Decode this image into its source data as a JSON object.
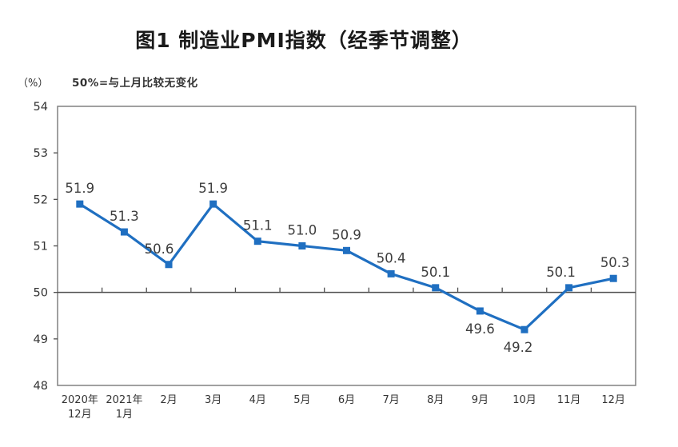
{
  "header": {
    "title": "图1 制造业PMI指数（经季节调整）"
  },
  "chart_data": {
    "type": "line",
    "title": "图1 制造业PMI指数（经季节调整）",
    "unit_label": "（%）",
    "annotation": "50%=与上月比较无变化",
    "categories": [
      [
        "2020年",
        "12月"
      ],
      [
        "2021年",
        "1月"
      ],
      [
        "2月"
      ],
      [
        "3月"
      ],
      [
        "4月"
      ],
      [
        "5月"
      ],
      [
        "6月"
      ],
      [
        "7月"
      ],
      [
        "8月"
      ],
      [
        "9月"
      ],
      [
        "10月"
      ],
      [
        "11月"
      ],
      [
        "12月"
      ]
    ],
    "series": [
      {
        "name": "制造业PMI",
        "values": [
          51.9,
          51.3,
          50.6,
          51.9,
          51.1,
          51.0,
          50.9,
          50.4,
          50.1,
          49.6,
          49.2,
          50.1,
          50.3
        ]
      }
    ],
    "data_labels": [
      "51.9",
      "51.3",
      "50.6",
      "51.9",
      "51.1",
      "51.0",
      "50.9",
      "50.4",
      "50.1",
      "49.6",
      "49.2",
      "50.1",
      "50.3"
    ],
    "data_label_positions": [
      "above",
      "above",
      "above",
      "above",
      "above",
      "above",
      "above",
      "above",
      "above",
      "below",
      "below",
      "above",
      "above"
    ],
    "data_label_dx": [
      0,
      0,
      -12,
      0,
      0,
      0,
      0,
      0,
      0,
      0,
      -8,
      -10,
      2
    ],
    "ylim": [
      48,
      54
    ],
    "y_ticks": [
      48,
      49,
      50,
      51,
      52,
      53,
      54
    ],
    "reference_line": 50,
    "grid": false,
    "legend": "none",
    "marker": "square",
    "colors": {
      "line": "#1F6FC1",
      "marker": "#1F6FC1",
      "frame": "#808080",
      "axis": "#4d4d4d",
      "tick_text": "#333333",
      "data_label_text": "#3d3d3d"
    }
  }
}
